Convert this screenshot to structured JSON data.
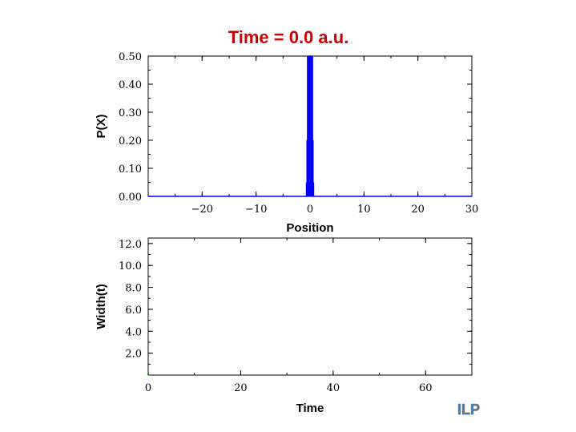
{
  "title": "Time =   0.0 a.u.",
  "logo": "ILP",
  "chart_data": [
    {
      "type": "line",
      "xlabel": "Position",
      "ylabel": "P(X)",
      "xlim": [
        -30,
        30
      ],
      "ylim": [
        0,
        0.5
      ],
      "xticks": [
        -20,
        -10,
        0,
        10,
        20,
        30
      ],
      "yticks": [
        0.0,
        0.1,
        0.2,
        0.3,
        0.4,
        0.5
      ],
      "xtick_labels": [
        "−20",
        "−10",
        "0",
        "10",
        "20",
        "30"
      ],
      "ytick_labels": [
        "0.00",
        "0.10",
        "0.20",
        "0.30",
        "0.40",
        "0.50"
      ],
      "series": [
        {
          "color": "#0000ff",
          "x": [
            -30,
            -0.5,
            -0.4,
            -0.3,
            -0.2,
            -0.1,
            0.0,
            0.1,
            0.2,
            0.3,
            0.4,
            0.5,
            30
          ],
          "y": [
            0,
            0,
            0.05,
            0.2,
            0.5,
            0.5,
            0.5,
            0.5,
            0.5,
            0.2,
            0.05,
            0,
            0
          ]
        }
      ],
      "grid": false
    },
    {
      "type": "line",
      "xlabel": "Time",
      "ylabel": "Width(t)",
      "xlim": [
        0,
        70
      ],
      "ylim": [
        0,
        12.5
      ],
      "xticks": [
        0,
        20,
        40,
        60
      ],
      "yticks": [
        2,
        4,
        6,
        8,
        10,
        12
      ],
      "xtick_labels": [
        "0",
        "20",
        "40",
        "60"
      ],
      "ytick_labels": [
        "2.0",
        "4.0",
        "6.0",
        "8.0",
        "10.0",
        "12.0"
      ],
      "series": [
        {
          "color": "#00a000",
          "x": [
            0
          ],
          "y": [
            0
          ]
        }
      ],
      "grid": false
    }
  ]
}
